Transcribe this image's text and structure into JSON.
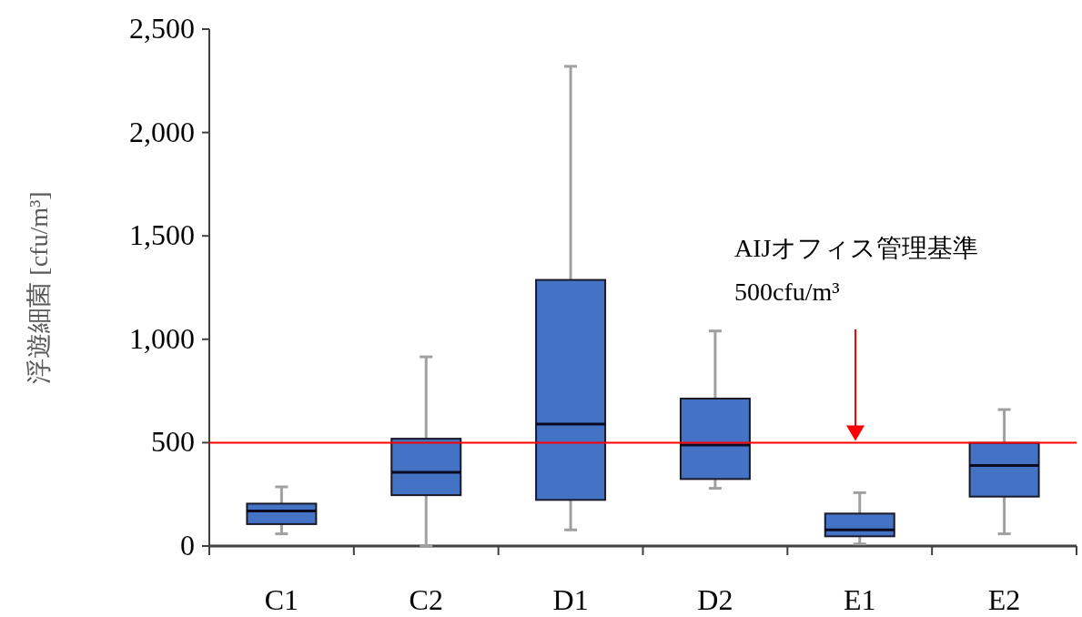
{
  "chart_data": {
    "type": "box",
    "ylabel": "浮遊細菌 [cfu/m³]",
    "categories": [
      "C1",
      "C2",
      "D1",
      "D2",
      "E1",
      "E2"
    ],
    "series": [
      {
        "color": "#4472c4",
        "boxes": [
          {
            "low": 59,
            "q1": 106,
            "median": 169,
            "q3": 205,
            "high": 286
          },
          {
            "low": 0,
            "q1": 246,
            "median": 357,
            "q3": 519,
            "high": 915
          },
          {
            "low": 78,
            "q1": 223,
            "median": 590,
            "q3": 1287,
            "high": 2320
          },
          {
            "low": 279,
            "q1": 324,
            "median": 489,
            "q3": 713,
            "high": 1040
          },
          {
            "low": 10,
            "q1": 47,
            "median": 78,
            "q3": 157,
            "high": 258
          },
          {
            "low": 59,
            "q1": 239,
            "median": 390,
            "q3": 499,
            "high": 660
          }
        ]
      }
    ],
    "ylim": [
      0,
      2500
    ],
    "yticks": [
      {
        "value": 0,
        "label": "0"
      },
      {
        "value": 500,
        "label": "500"
      },
      {
        "value": 1000,
        "label": "1,000"
      },
      {
        "value": 1500,
        "label": "1,500"
      },
      {
        "value": 2000,
        "label": "2,000"
      },
      {
        "value": 2500,
        "label": "2,500"
      }
    ],
    "ref_lines": [
      {
        "axis": "y",
        "value": 500,
        "color": "#ff0000"
      }
    ],
    "annotations": [
      "AIJオフィス管理基準 500cfu/m³"
    ],
    "grid": false
  }
}
